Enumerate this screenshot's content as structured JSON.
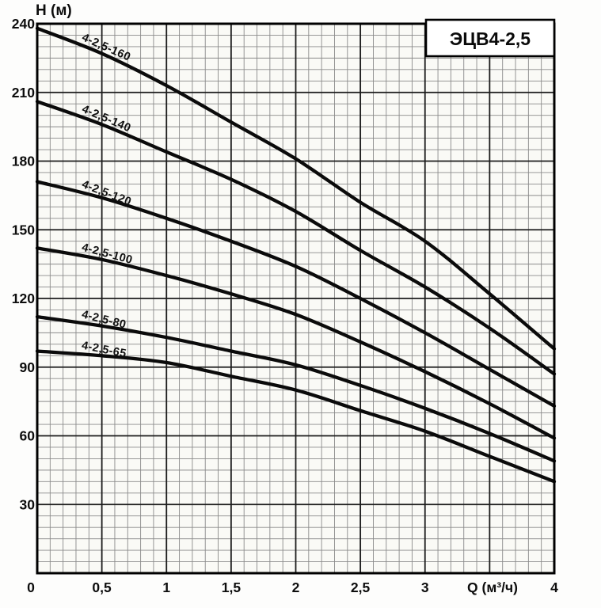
{
  "header": {
    "title_box_label": "ЭЦВ4-2,5"
  },
  "axes": {
    "y_title": "Н (м)",
    "x_title": "Q (м³/ч)",
    "y_ticks": [
      {
        "value": 240,
        "label": "240"
      },
      {
        "value": 210,
        "label": "210"
      },
      {
        "value": 180,
        "label": "180"
      },
      {
        "value": 150,
        "label": "150"
      },
      {
        "value": 120,
        "label": "120"
      },
      {
        "value": 90,
        "label": "90"
      },
      {
        "value": 60,
        "label": "60"
      },
      {
        "value": 30,
        "label": "30"
      }
    ],
    "x_ticks": [
      {
        "value": 0,
        "label": "0"
      },
      {
        "value": 0.5,
        "label": "0,5"
      },
      {
        "value": 1,
        "label": "1"
      },
      {
        "value": 1.5,
        "label": "1,5"
      },
      {
        "value": 2,
        "label": "2"
      },
      {
        "value": 2.5,
        "label": "2,5"
      },
      {
        "value": 3,
        "label": "3"
      },
      {
        "value": 4,
        "label": "4"
      }
    ]
  },
  "chart_data": {
    "type": "line",
    "title": "ЭЦВ4-2,5",
    "xlabel": "Q (м³/ч)",
    "ylabel": "Н (м)",
    "x": [
      0,
      0.5,
      1,
      1.5,
      2,
      2.5,
      3,
      3.5,
      4
    ],
    "xlim": [
      0,
      4
    ],
    "ylim": [
      0,
      240
    ],
    "x_major_step": 0.5,
    "x_minor_step": 0.1,
    "y_major_step": 30,
    "y_minor_step": 5,
    "grid": "major+minor",
    "legend_position": "labels-along-curves",
    "series": [
      {
        "name": "4-2,5-160",
        "values": [
          238,
          227,
          213,
          197,
          181,
          162,
          145,
          122,
          98
        ],
        "label_angle_deg": 24
      },
      {
        "name": "4-2,5-140",
        "values": [
          206,
          196,
          184,
          172,
          158,
          141,
          125,
          107,
          87
        ],
        "label_angle_deg": 23
      },
      {
        "name": "4-2,5-120",
        "values": [
          171,
          164,
          155,
          145,
          134,
          120,
          105,
          89,
          73
        ],
        "label_angle_deg": 21
      },
      {
        "name": "4-2,5-100",
        "values": [
          142,
          137,
          130,
          122,
          113,
          101,
          88,
          74,
          59
        ],
        "label_angle_deg": 15
      },
      {
        "name": "4-2,5-80",
        "values": [
          112,
          108,
          103,
          97,
          91,
          82,
          72,
          61,
          49
        ],
        "label_angle_deg": 14
      },
      {
        "name": "4-2,5-65",
        "values": [
          97,
          95,
          92,
          86,
          80,
          71,
          62,
          51,
          40
        ],
        "label_angle_deg": 11
      }
    ]
  },
  "colors": {
    "curve": "#0b0b0b",
    "grid_major": "#1c1c1c",
    "grid_minor": "#8a8a8a",
    "border": "#000000",
    "plot_background": "#faFaf6",
    "paper": "#fdfdfc",
    "title_box_fill": "#ffffff",
    "text": "#0d0d0d"
  }
}
